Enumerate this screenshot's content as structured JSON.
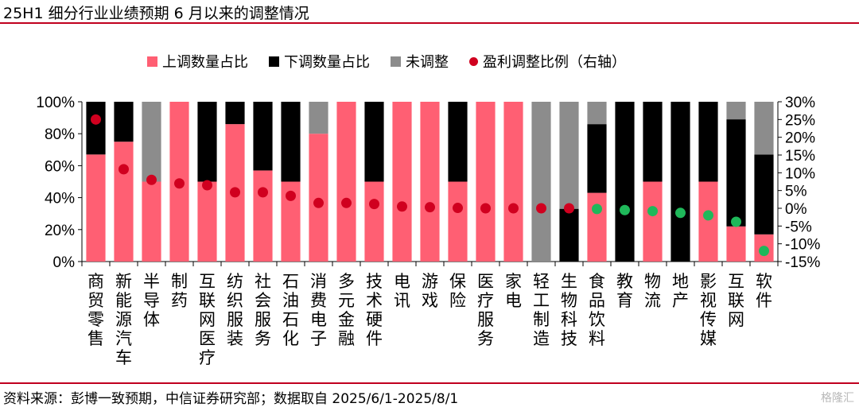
{
  "title": "25H1 细分行业业绩预期 6 月以来的调整情况",
  "source": "资料来源：彭博一致预期，中信证券研究部；数据取自 2025/6/1-2025/8/1",
  "watermark": "格隆汇",
  "colors": {
    "up": "#ff5f73",
    "down": "#000000",
    "none": "#8c8c8c",
    "ratio_pos": "#d0001f",
    "ratio_neg": "#1fb85a",
    "rule": "#c0001e"
  },
  "chart_data": {
    "type": "bar",
    "stacked": true,
    "legend": [
      {
        "name": "上调数量占比",
        "color": "#ff5f73",
        "marker": "square"
      },
      {
        "name": "下调数量占比",
        "color": "#000000",
        "marker": "square"
      },
      {
        "name": "未调整",
        "color": "#8c8c8c",
        "marker": "square"
      },
      {
        "name": "盈利调整比例（右轴）",
        "color": "#d0001f",
        "marker": "circle"
      }
    ],
    "legend_position": "top",
    "categories": [
      "商贸零售",
      "新能源汽车",
      "半导体",
      "制药",
      "互联网医疗",
      "纺织服装",
      "社会服务",
      "石油石化",
      "消费电子",
      "多元金融",
      "技术硬件",
      "电讯",
      "游戏",
      "保险",
      "医疗服务",
      "家电",
      "轻工制造",
      "生物科技",
      "食品饮料",
      "教育",
      "物流",
      "地产",
      "影视传媒",
      "互联网",
      "软件"
    ],
    "series": [
      {
        "name": "上调数量占比",
        "values": [
          67,
          75,
          50,
          100,
          50,
          86,
          57,
          50,
          80,
          100,
          50,
          100,
          100,
          50,
          100,
          100,
          0,
          0,
          43,
          0,
          50,
          0,
          50,
          22,
          17
        ]
      },
      {
        "name": "下调数量占比",
        "values": [
          33,
          25,
          0,
          0,
          50,
          14,
          43,
          50,
          0,
          0,
          50,
          0,
          0,
          50,
          0,
          0,
          0,
          33,
          43,
          100,
          50,
          100,
          50,
          67,
          50
        ]
      },
      {
        "name": "未调整",
        "values": [
          0,
          0,
          50,
          0,
          0,
          0,
          0,
          0,
          20,
          0,
          0,
          0,
          0,
          0,
          0,
          0,
          100,
          67,
          14,
          0,
          0,
          0,
          0,
          11,
          33
        ]
      },
      {
        "name": "盈利调整比例（右轴）",
        "axis": "right",
        "values": [
          25.0,
          11.0,
          8.0,
          7.0,
          6.5,
          4.5,
          4.5,
          3.5,
          1.5,
          1.5,
          1.2,
          0.5,
          0.3,
          0.1,
          0.0,
          0.0,
          0.0,
          0.0,
          -0.2,
          -0.5,
          -0.8,
          -1.3,
          -2.0,
          -3.8,
          -12.0
        ]
      }
    ],
    "left_axis": {
      "ylim": [
        0,
        100
      ],
      "ticks": [
        "0%",
        "20%",
        "40%",
        "60%",
        "80%",
        "100%"
      ]
    },
    "right_axis": {
      "ylim": [
        -15,
        30
      ],
      "ticks": [
        "-15%",
        "-10%",
        "-5%",
        "0%",
        "5%",
        "10%",
        "15%",
        "20%",
        "25%",
        "30%"
      ]
    },
    "grid": false
  }
}
